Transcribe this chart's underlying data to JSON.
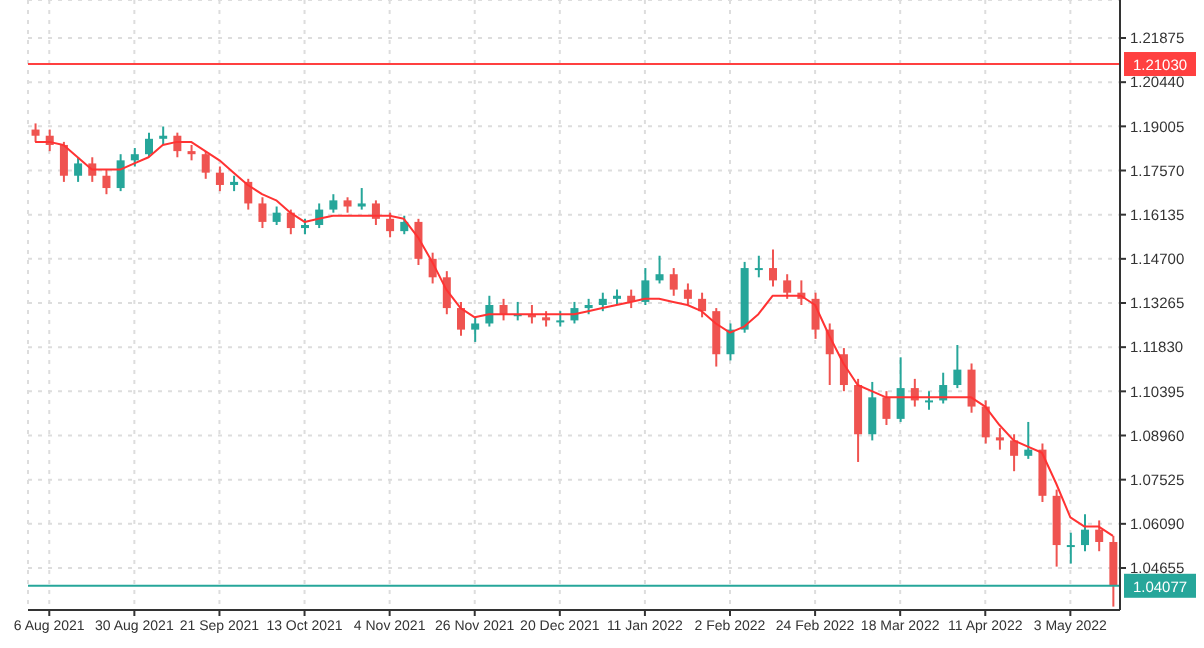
{
  "chart_data": {
    "type": "candlestick",
    "categories": [
      null,
      "6 Aug 2021",
      null,
      null,
      null,
      null,
      null,
      "30 Aug 2021",
      null,
      null,
      null,
      null,
      null,
      "21 Sep 2021",
      null,
      null,
      null,
      null,
      null,
      "13 Oct 2021",
      null,
      null,
      null,
      null,
      null,
      "4 Nov 2021",
      null,
      null,
      null,
      null,
      null,
      "26 Nov 2021",
      null,
      null,
      null,
      null,
      null,
      "20 Dec 2021",
      null,
      null,
      null,
      null,
      null,
      "11 Jan 2022",
      null,
      null,
      null,
      null,
      null,
      "2 Feb 2022",
      null,
      null,
      null,
      null,
      null,
      "24 Feb 2022",
      null,
      null,
      null,
      null,
      null,
      "18 Mar 2022",
      null,
      null,
      null,
      null,
      null,
      "11 Apr 2022",
      null,
      null,
      null,
      null,
      null,
      "3 May 2022",
      null,
      null,
      null
    ],
    "ohlc": [
      [
        1.189,
        1.191,
        1.185,
        1.187
      ],
      [
        1.187,
        1.189,
        1.182,
        1.184
      ],
      [
        1.184,
        1.185,
        1.172,
        1.174
      ],
      [
        1.174,
        1.18,
        1.172,
        1.178
      ],
      [
        1.178,
        1.18,
        1.172,
        1.174
      ],
      [
        1.174,
        1.176,
        1.168,
        1.17
      ],
      [
        1.17,
        1.181,
        1.169,
        1.179
      ],
      [
        1.179,
        1.183,
        1.177,
        1.181
      ],
      [
        1.181,
        1.188,
        1.18,
        1.186
      ],
      [
        1.186,
        1.19,
        1.184,
        1.187
      ],
      [
        1.187,
        1.188,
        1.18,
        1.182
      ],
      [
        1.182,
        1.184,
        1.179,
        1.181
      ],
      [
        1.181,
        1.182,
        1.173,
        1.175
      ],
      [
        1.175,
        1.177,
        1.169,
        1.171
      ],
      [
        1.171,
        1.174,
        1.169,
        1.172
      ],
      [
        1.172,
        1.173,
        1.163,
        1.165
      ],
      [
        1.165,
        1.167,
        1.157,
        1.159
      ],
      [
        1.159,
        1.164,
        1.158,
        1.162
      ],
      [
        1.162,
        1.163,
        1.155,
        1.157
      ],
      [
        1.157,
        1.16,
        1.155,
        1.158
      ],
      [
        1.158,
        1.165,
        1.157,
        1.163
      ],
      [
        1.163,
        1.168,
        1.162,
        1.166
      ],
      [
        1.166,
        1.167,
        1.162,
        1.164
      ],
      [
        1.164,
        1.17,
        1.163,
        1.165
      ],
      [
        1.165,
        1.166,
        1.158,
        1.16
      ],
      [
        1.16,
        1.162,
        1.154,
        1.156
      ],
      [
        1.156,
        1.161,
        1.155,
        1.159
      ],
      [
        1.159,
        1.16,
        1.145,
        1.147
      ],
      [
        1.147,
        1.149,
        1.139,
        1.141
      ],
      [
        1.141,
        1.143,
        1.129,
        1.131
      ],
      [
        1.131,
        1.133,
        1.122,
        1.124
      ],
      [
        1.124,
        1.128,
        1.12,
        1.126
      ],
      [
        1.126,
        1.135,
        1.125,
        1.132
      ],
      [
        1.132,
        1.134,
        1.127,
        1.129
      ],
      [
        1.129,
        1.133,
        1.127,
        1.129
      ],
      [
        1.129,
        1.132,
        1.126,
        1.128
      ],
      [
        1.128,
        1.13,
        1.125,
        1.127
      ],
      [
        1.127,
        1.13,
        1.125,
        1.127
      ],
      [
        1.127,
        1.133,
        1.126,
        1.131
      ],
      [
        1.131,
        1.134,
        1.129,
        1.132
      ],
      [
        1.132,
        1.136,
        1.13,
        1.134
      ],
      [
        1.134,
        1.137,
        1.132,
        1.135
      ],
      [
        1.135,
        1.137,
        1.131,
        1.133
      ],
      [
        1.133,
        1.144,
        1.132,
        1.14
      ],
      [
        1.14,
        1.148,
        1.139,
        1.142
      ],
      [
        1.142,
        1.144,
        1.135,
        1.137
      ],
      [
        1.137,
        1.139,
        1.132,
        1.134
      ],
      [
        1.134,
        1.136,
        1.128,
        1.13
      ],
      [
        1.13,
        1.131,
        1.112,
        1.116
      ],
      [
        1.116,
        1.126,
        1.114,
        1.124
      ],
      [
        1.124,
        1.146,
        1.123,
        1.144
      ],
      [
        1.144,
        1.148,
        1.141,
        1.144
      ],
      [
        1.144,
        1.15,
        1.138,
        1.14
      ],
      [
        1.14,
        1.142,
        1.134,
        1.136
      ],
      [
        1.136,
        1.14,
        1.132,
        1.134
      ],
      [
        1.134,
        1.136,
        1.121,
        1.124
      ],
      [
        1.124,
        1.126,
        1.106,
        1.116
      ],
      [
        1.116,
        1.118,
        1.104,
        1.106
      ],
      [
        1.106,
        1.108,
        1.081,
        1.09
      ],
      [
        1.09,
        1.107,
        1.088,
        1.102
      ],
      [
        1.102,
        1.104,
        1.093,
        1.095
      ],
      [
        1.095,
        1.115,
        1.094,
        1.105
      ],
      [
        1.105,
        1.108,
        1.099,
        1.101
      ],
      [
        1.101,
        1.104,
        1.098,
        1.101
      ],
      [
        1.101,
        1.11,
        1.1,
        1.106
      ],
      [
        1.106,
        1.119,
        1.105,
        1.111
      ],
      [
        1.111,
        1.113,
        1.097,
        1.099
      ],
      [
        1.099,
        1.101,
        1.087,
        1.089
      ],
      [
        1.089,
        1.092,
        1.085,
        1.088
      ],
      [
        1.088,
        1.09,
        1.078,
        1.083
      ],
      [
        1.083,
        1.094,
        1.082,
        1.085
      ],
      [
        1.085,
        1.087,
        1.068,
        1.07
      ],
      [
        1.07,
        1.072,
        1.047,
        1.054
      ],
      [
        1.054,
        1.058,
        1.048,
        1.054
      ],
      [
        1.054,
        1.064,
        1.052,
        1.059
      ],
      [
        1.059,
        1.062,
        1.052,
        1.055
      ],
      [
        1.055,
        1.057,
        1.034,
        1.04077
      ]
    ],
    "series": [
      {
        "type": "line",
        "color": "#ff3333",
        "values": [
          1.185,
          1.185,
          1.184,
          1.18,
          1.176,
          1.176,
          1.176,
          1.178,
          1.18,
          1.184,
          1.185,
          1.185,
          1.182,
          1.179,
          1.175,
          1.171,
          1.168,
          1.166,
          1.162,
          1.159,
          1.16,
          1.161,
          1.161,
          1.161,
          1.161,
          1.161,
          1.16,
          1.154,
          1.146,
          1.137,
          1.131,
          1.128,
          1.129,
          1.129,
          1.129,
          1.129,
          1.129,
          1.129,
          1.129,
          1.13,
          1.131,
          1.132,
          1.133,
          1.134,
          1.134,
          1.133,
          1.132,
          1.13,
          1.126,
          1.123,
          1.125,
          1.129,
          1.135,
          1.135,
          1.135,
          1.132,
          1.122,
          1.113,
          1.106,
          1.104,
          1.102,
          1.102,
          1.102,
          1.102,
          1.102,
          1.102,
          1.102,
          1.099,
          1.093,
          1.088,
          1.086,
          1.084,
          1.074,
          1.063,
          1.06,
          1.06,
          1.057
        ]
      }
    ],
    "ylim": [
      1.0329,
      1.2311
    ],
    "yticks": [
      {
        "value": 1.21875,
        "label": "1.21875"
      },
      {
        "value": 1.2044,
        "label": "1.20440"
      },
      {
        "value": 1.19005,
        "label": "1.19005"
      },
      {
        "value": 1.1757,
        "label": "1.17570"
      },
      {
        "value": 1.16135,
        "label": "1.16135"
      },
      {
        "value": 1.147,
        "label": "1.14700"
      },
      {
        "value": 1.13265,
        "label": "1.13265"
      },
      {
        "value": 1.1183,
        "label": "1.11830"
      },
      {
        "value": 1.10395,
        "label": "1.10395"
      },
      {
        "value": 1.0896,
        "label": "1.08960"
      },
      {
        "value": 1.07525,
        "label": "1.07525"
      },
      {
        "value": 1.0609,
        "label": "1.06090"
      },
      {
        "value": 1.04655,
        "label": "1.04655"
      }
    ],
    "ref_lines": [
      {
        "axis": "y",
        "value": 1.2103,
        "label": "1.21030",
        "color": "#ff4040"
      },
      {
        "axis": "y",
        "value": 1.04077,
        "label": "1.04077",
        "color": "#26a69a"
      }
    ],
    "grid": true
  }
}
